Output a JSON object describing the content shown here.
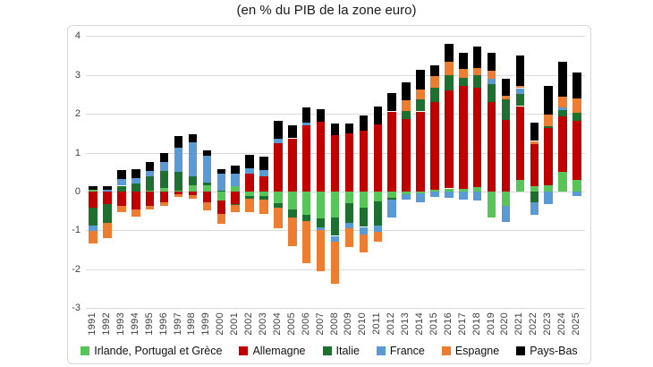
{
  "title": "(en % du PIB de la zone euro)",
  "chart_data": {
    "type": "bar",
    "stacked": true,
    "grid": true,
    "legend_position": "bottom",
    "ylim": [
      -3,
      4
    ],
    "ytick_step": 1,
    "ytick_labels": [
      "4",
      "3",
      "2",
      "1",
      "0",
      "-1",
      "-2",
      "-3"
    ],
    "categories": [
      "1991",
      "1992",
      "1993",
      "1994",
      "1995",
      "1996",
      "1997",
      "1998",
      "1999",
      "2000",
      "2001",
      "2002",
      "2003",
      "2004",
      "2005",
      "2006",
      "2007",
      "2008",
      "2009",
      "2010",
      "2011",
      "2012",
      "2013",
      "2014",
      "2015",
      "2016",
      "2017",
      "2018",
      "2019",
      "2020",
      "2021",
      "2022",
      "2023",
      "2024",
      "2025"
    ],
    "series": [
      {
        "name": "Irlande, Portugal et Grèce",
        "color": "#58c558",
        "values": [
          0.04,
          0,
          0,
          0,
          0.03,
          0.09,
          0.02,
          0.17,
          0.17,
          -0.22,
          0.13,
          -0.12,
          -0.12,
          -0.29,
          -0.46,
          -0.6,
          -0.69,
          -0.66,
          -0.29,
          -0.41,
          -0.25,
          -0.15,
          -0.06,
          -0.05,
          0.05,
          0.08,
          0.08,
          0.11,
          -0.66,
          -0.36,
          0.31,
          0.13,
          0.17,
          0.5,
          0.3
        ]
      },
      {
        "name": "Allemagne",
        "color": "#c00000",
        "values": [
          -0.42,
          -0.32,
          -0.37,
          -0.45,
          -0.37,
          -0.28,
          -0.06,
          -0.08,
          -0.28,
          -0.35,
          -0.32,
          0.46,
          0.39,
          1.25,
          1.37,
          1.7,
          1.79,
          1.45,
          1.5,
          1.56,
          1.73,
          2.06,
          1.87,
          2.06,
          2.26,
          2.52,
          2.64,
          2.57,
          2.31,
          1.84,
          1.89,
          1.08,
          1.46,
          1.43,
          1.53
        ]
      },
      {
        "name": "Italie",
        "color": "#1e7030",
        "values": [
          -0.46,
          -0.49,
          0.15,
          0.21,
          0.37,
          0.43,
          0.48,
          0.23,
          0.06,
          0.03,
          -0.03,
          -0.06,
          -0.09,
          -0.12,
          -0.2,
          -0.15,
          -0.23,
          -0.48,
          -0.52,
          -0.5,
          -0.62,
          -0.06,
          0.21,
          0.32,
          0.36,
          0.39,
          0.21,
          0.31,
          0.45,
          0.54,
          0.32,
          -0.27,
          0.06,
          0.17,
          0.19
        ]
      },
      {
        "name": "France",
        "color": "#5b9bd5",
        "values": [
          -0.14,
          0.05,
          0.17,
          0.13,
          0.12,
          0.25,
          0.63,
          0.87,
          0.69,
          0.43,
          0.33,
          0.13,
          0.17,
          0.12,
          0,
          0.07,
          -0.06,
          -0.14,
          -0.13,
          -0.19,
          -0.17,
          -0.45,
          -0.15,
          -0.23,
          -0.14,
          -0.15,
          -0.2,
          -0.22,
          0.14,
          -0.42,
          0.14,
          -0.33,
          -0.31,
          0.06,
          -0.11
        ]
      },
      {
        "name": "Espagne",
        "color": "#ed7d31",
        "values": [
          -0.32,
          -0.39,
          -0.15,
          -0.19,
          -0.09,
          -0.09,
          -0.09,
          -0.1,
          -0.21,
          -0.27,
          -0.17,
          -0.34,
          -0.37,
          -0.54,
          -0.75,
          -1.1,
          -1.06,
          -1.1,
          -0.5,
          -0.46,
          -0.25,
          0,
          0.28,
          0.25,
          0.29,
          0.34,
          0.23,
          0.19,
          0.21,
          0.08,
          0.06,
          0.09,
          0.28,
          0.29,
          0.37
        ]
      },
      {
        "name": "Pays-Bas",
        "color": "#000000",
        "values": [
          0.11,
          0.08,
          0.24,
          0.23,
          0.23,
          0.23,
          0.29,
          0.21,
          0.15,
          0.11,
          0.21,
          0.35,
          0.35,
          0.46,
          0.33,
          0.4,
          0.32,
          0.3,
          0.26,
          0.4,
          0.46,
          0.48,
          0.46,
          0.5,
          0.28,
          0.47,
          0.42,
          0.54,
          0.46,
          0.45,
          0.79,
          0.48,
          0.75,
          0.9,
          0.67
        ]
      }
    ]
  }
}
